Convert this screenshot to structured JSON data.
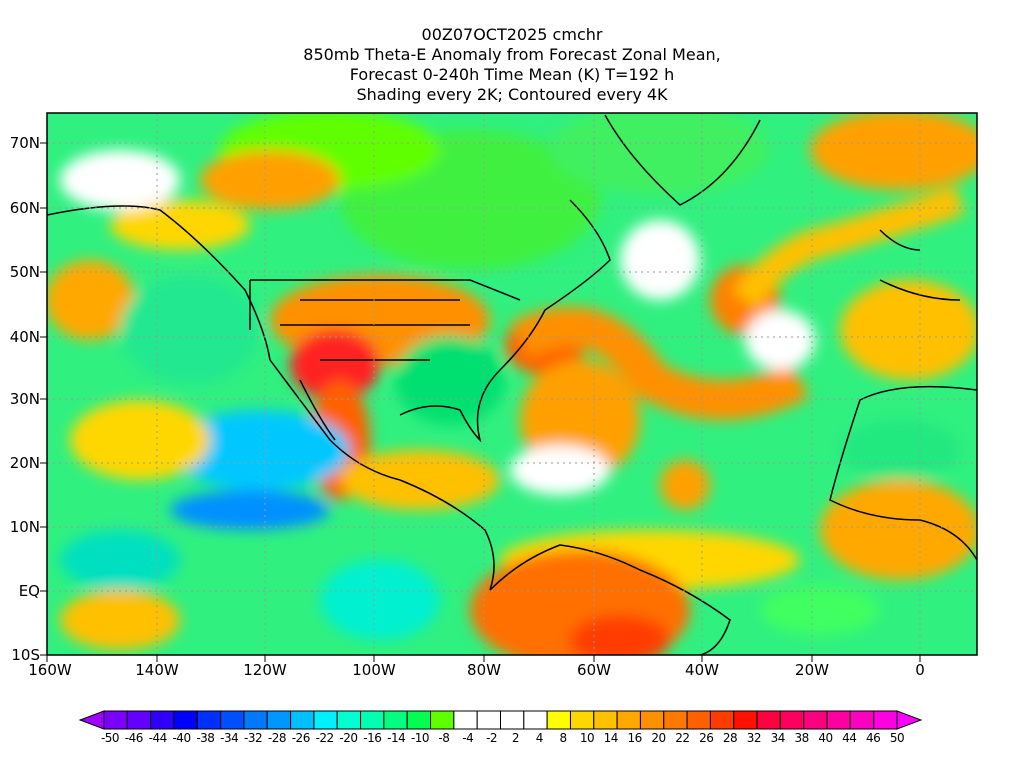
{
  "title": {
    "lines": [
      "00Z07OCT2025 cmchr",
      "850mb Theta-E Anomaly from Forecast Zonal Mean,",
      "Forecast 0-240h Time Mean (K) T=192 h",
      "Shading every 2K; Contoured every 4K"
    ]
  },
  "axes": {
    "lon_labels": [
      "160W",
      "140W",
      "120W",
      "100W",
      "80W",
      "60W",
      "40W",
      "20W",
      "0"
    ],
    "lat_labels": [
      "70N",
      "60N",
      "50N",
      "40N",
      "30N",
      "20N",
      "10N",
      "EQ",
      "10S"
    ]
  },
  "colorbar": {
    "labels": [
      "-50",
      "-46",
      "-44",
      "-40",
      "-38",
      "-34",
      "-32",
      "-28",
      "-26",
      "-22",
      "-20",
      "-16",
      "-14",
      "-10",
      "-8",
      "-4",
      "-2",
      "2",
      "4",
      "8",
      "10",
      "14",
      "16",
      "20",
      "22",
      "26",
      "28",
      "32",
      "34",
      "38",
      "40",
      "44",
      "46",
      "50"
    ],
    "left_arrow_color": "#a000ff",
    "right_arrow_color": "#ff00ff",
    "colors": [
      "#7a00ff",
      "#6400ff",
      "#3000ff",
      "#0000ff",
      "#0030ff",
      "#0050ff",
      "#0078ff",
      "#0096ff",
      "#00c0ff",
      "#00f0ff",
      "#00ffd0",
      "#00ffb0",
      "#00ff80",
      "#00ff50",
      "#60ff00",
      "#ffffff",
      "#ffffff",
      "#ffffff",
      "#ffffff",
      "#ffff00",
      "#ffd700",
      "#ffc000",
      "#ffa800",
      "#ff9000",
      "#ff7800",
      "#ff6000",
      "#ff3c00",
      "#ff1000",
      "#ff0040",
      "#ff0060",
      "#ff0080",
      "#ff00a0",
      "#ff00c0",
      "#ff00e0"
    ]
  }
}
